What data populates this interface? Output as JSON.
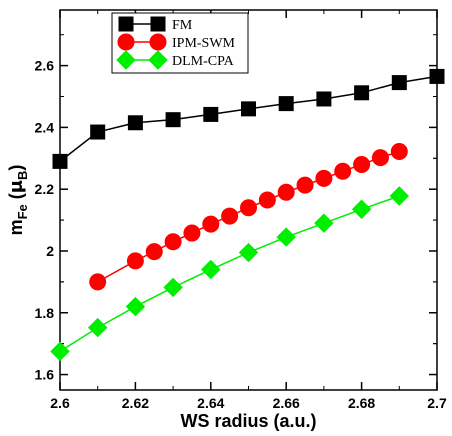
{
  "chart_data": {
    "type": "line",
    "xlabel": "WS radius (a.u.)",
    "ylabel": {
      "main": "m",
      "sub": "Fe",
      "unit_open": "(",
      "unit_symbol": "μ",
      "unit_sub": "B",
      "unit_close": ")"
    },
    "xlim": [
      2.6,
      2.7
    ],
    "ylim": [
      1.55,
      2.78
    ],
    "x_ticks": [
      2.6,
      2.62,
      2.64,
      2.66,
      2.68,
      2.7
    ],
    "x_tick_labels": [
      "2.6",
      "2.62",
      "2.64",
      "2.66",
      "2.68",
      "2.7"
    ],
    "y_ticks": [
      1.6,
      1.8,
      2.0,
      2.2,
      2.4,
      2.6
    ],
    "y_tick_labels": [
      "1.6",
      "1.8",
      "2",
      "2.2",
      "2.4",
      "2.6"
    ],
    "grid": false,
    "legend_position": "top-left",
    "series": [
      {
        "name": "FM",
        "color": "#000000",
        "marker": "square",
        "x": [
          2.6,
          2.61,
          2.62,
          2.63,
          2.64,
          2.65,
          2.66,
          2.67,
          2.68,
          2.69,
          2.7
        ],
        "y": [
          2.29,
          2.385,
          2.415,
          2.425,
          2.442,
          2.46,
          2.477,
          2.492,
          2.512,
          2.545,
          2.565
        ]
      },
      {
        "name": "IPM-SWM",
        "color": "#ff0000",
        "marker": "circle",
        "x": [
          2.61,
          2.62,
          2.625,
          2.63,
          2.635,
          2.64,
          2.645,
          2.65,
          2.655,
          2.66,
          2.665,
          2.67,
          2.675,
          2.68,
          2.685,
          2.69
        ],
        "y": [
          1.9,
          1.968,
          1.998,
          2.03,
          2.058,
          2.087,
          2.113,
          2.14,
          2.165,
          2.19,
          2.213,
          2.235,
          2.258,
          2.28,
          2.302,
          2.322
        ]
      },
      {
        "name": "DLM-CPA",
        "color": "#00ee00",
        "marker": "diamond",
        "x": [
          2.6,
          2.61,
          2.62,
          2.63,
          2.64,
          2.65,
          2.66,
          2.67,
          2.68,
          2.69
        ],
        "y": [
          1.675,
          1.752,
          1.82,
          1.882,
          1.94,
          1.995,
          2.045,
          2.09,
          2.135,
          2.178
        ]
      }
    ]
  }
}
